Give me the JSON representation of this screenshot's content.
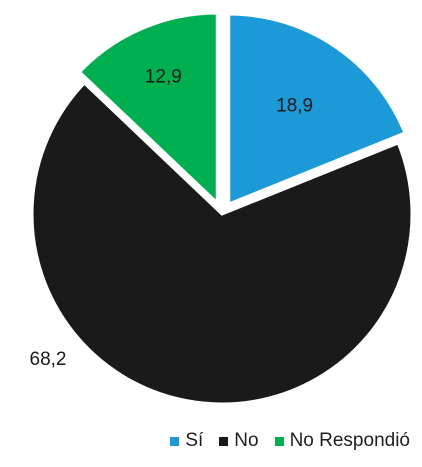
{
  "chart_data": {
    "type": "pie",
    "title": "",
    "start_angle_deg": 0,
    "direction": "clockwise",
    "exploded": true,
    "series": [
      {
        "name": "Sí",
        "value": 18.9,
        "label": "18,9",
        "color": "#1b9ad7"
      },
      {
        "name": "No",
        "value": 68.2,
        "label": "68,2",
        "color": "#1a1a1a"
      },
      {
        "name": "No Respondió",
        "value": 12.9,
        "label": "12,9",
        "color": "#00b050"
      }
    ],
    "legend_position": "bottom-right"
  }
}
